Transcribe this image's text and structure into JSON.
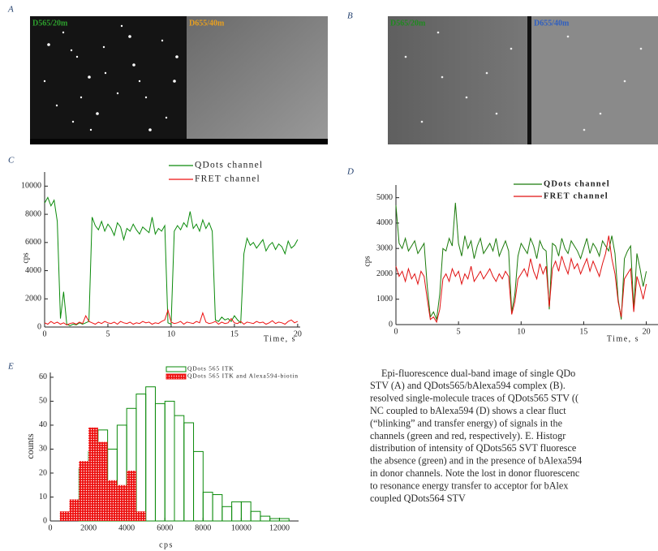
{
  "images": [
    {
      "panel": "A",
      "labels": [
        "D565/20m",
        "D655/40m"
      ]
    },
    {
      "panel": "B",
      "labels": [
        "D565/20m",
        "D655/40m"
      ]
    }
  ],
  "caption": [
    "Epi-fluorescence dual-band  image of single QDo",
    "STV (A) and QDots565/bAlexa594 complex (B).",
    "resolved single-molecule traces of QDots565 STV ((",
    "NC coupled to bAlexa594 (D) shows a clear fluct",
    "(“blinking” and transfer energy) of signals in the",
    "channels (green and red, respectively). E. Histogr",
    "distribution of intensity of QDots565 SVT fluoresce",
    "the absence (green) and in the presence of bAlexa594",
    "in donor channels. Note the lost in donor fluorescenc",
    "to resonance energy transfer to acceptor for bAlex",
    "coupled QDots564 STV"
  ],
  "chart_data": [
    {
      "type": "line",
      "panel": "C",
      "x_label": "Time, s",
      "y_label": "cps",
      "x": [
        0,
        0.25,
        0.5,
        0.75,
        1,
        1.25,
        1.5,
        1.75,
        2,
        2.25,
        2.5,
        2.75,
        3,
        3.25,
        3.5,
        3.75,
        4,
        4.25,
        4.5,
        4.75,
        5,
        5.25,
        5.5,
        5.75,
        6,
        6.25,
        6.5,
        6.75,
        7,
        7.25,
        7.5,
        7.75,
        8,
        8.25,
        8.5,
        8.75,
        9,
        9.25,
        9.5,
        9.75,
        10,
        10.25,
        10.5,
        10.75,
        11,
        11.25,
        11.5,
        11.75,
        12,
        12.25,
        12.5,
        12.75,
        13,
        13.25,
        13.5,
        13.75,
        14,
        14.25,
        14.5,
        14.75,
        15,
        15.25,
        15.5,
        15.75,
        16,
        16.25,
        16.5,
        16.75,
        17,
        17.25,
        17.5,
        17.75,
        18,
        18.25,
        18.5,
        18.75,
        19,
        19.25,
        19.5,
        19.75,
        20
      ],
      "series": [
        {
          "name": "QDots channel",
          "color": "#0a8a0a",
          "values": [
            8800,
            9200,
            8600,
            9000,
            7500,
            600,
            2500,
            200,
            100,
            200,
            150,
            300,
            200,
            300,
            400,
            7800,
            7200,
            6900,
            7500,
            6800,
            7300,
            7000,
            6500,
            7400,
            7100,
            6200,
            7000,
            6800,
            7300,
            6900,
            6600,
            7100,
            6900,
            6700,
            7800,
            6600,
            7000,
            6800,
            7200,
            300,
            200,
            6800,
            7200,
            6900,
            7400,
            7100,
            8200,
            7000,
            7300,
            6800,
            7600,
            7000,
            7400,
            6800,
            500,
            400,
            700,
            500,
            600,
            400,
            800,
            500,
            300,
            5200,
            6300,
            5800,
            6000,
            5600,
            5900,
            6200,
            5400,
            5800,
            6000,
            5500,
            5900,
            5700,
            5200,
            6100,
            5600,
            5800,
            6200
          ]
        },
        {
          "name": "FRET channel",
          "color": "#ee1111",
          "values": [
            300,
            200,
            400,
            250,
            350,
            200,
            300,
            150,
            250,
            300,
            200,
            350,
            250,
            800,
            400,
            300,
            200,
            350,
            250,
            400,
            300,
            250,
            350,
            200,
            400,
            300,
            250,
            350,
            200,
            300,
            250,
            400,
            300,
            350,
            200,
            300,
            250,
            400,
            500,
            1200,
            350,
            250,
            300,
            400,
            200,
            350,
            300,
            250,
            400,
            300,
            1000,
            350,
            250,
            300,
            400,
            200,
            350,
            250,
            300,
            600,
            300,
            250,
            400,
            200,
            350,
            300,
            250,
            400,
            300,
            350,
            200,
            300,
            450,
            250,
            350,
            300,
            200,
            400,
            500,
            300,
            400
          ]
        }
      ],
      "xlim": [
        0,
        20.2
      ],
      "ylim": [
        0,
        11000
      ],
      "xticks": [
        0,
        5,
        10,
        15,
        20
      ],
      "yticks": [
        0,
        2000,
        4000,
        6000,
        8000,
        10000
      ]
    },
    {
      "type": "line",
      "panel": "D",
      "x_label": "Time, s",
      "y_label": "cps",
      "x": [
        0,
        0.25,
        0.5,
        0.75,
        1,
        1.25,
        1.5,
        1.75,
        2,
        2.25,
        2.5,
        2.75,
        3,
        3.25,
        3.5,
        3.75,
        4,
        4.25,
        4.5,
        4.75,
        5,
        5.25,
        5.5,
        5.75,
        6,
        6.25,
        6.5,
        6.75,
        7,
        7.25,
        7.5,
        7.75,
        8,
        8.25,
        8.5,
        8.75,
        9,
        9.25,
        9.5,
        9.75,
        10,
        10.25,
        10.5,
        10.75,
        11,
        11.25,
        11.5,
        11.75,
        12,
        12.25,
        12.5,
        12.75,
        13,
        13.25,
        13.5,
        13.75,
        14,
        14.25,
        14.5,
        14.75,
        15,
        15.25,
        15.5,
        15.75,
        16,
        16.25,
        16.5,
        16.75,
        17,
        17.25,
        17.5,
        17.75,
        18,
        18.25,
        18.5,
        18.75,
        19,
        19.25,
        19.5,
        19.75,
        20
      ],
      "series": [
        {
          "name": "QDots channel",
          "color": "#1a7a0a",
          "values": [
            4700,
            3200,
            3000,
            3400,
            2900,
            3100,
            3300,
            2800,
            3000,
            3200,
            1500,
            300,
            500,
            200,
            1200,
            3000,
            2900,
            3400,
            3100,
            4800,
            3200,
            2700,
            3500,
            3000,
            3300,
            2600,
            3100,
            3400,
            2800,
            3000,
            3200,
            2900,
            3400,
            2700,
            3000,
            3300,
            2900,
            500,
            1200,
            2700,
            3200,
            3000,
            2800,
            3400,
            3100,
            2600,
            3300,
            3000,
            2900,
            600,
            3200,
            3100,
            2700,
            3400,
            3000,
            2800,
            3300,
            3100,
            2900,
            2600,
            3000,
            3400,
            2800,
            3200,
            3000,
            2700,
            3300,
            3100,
            2900,
            3500,
            2800,
            1000,
            200,
            2600,
            2900,
            3100,
            600,
            2800,
            2200,
            1500,
            2100
          ]
        },
        {
          "name": "FRET channel",
          "color": "#e01010",
          "values": [
            2300,
            1900,
            2100,
            1700,
            2200,
            1800,
            2000,
            1600,
            2100,
            1900,
            1000,
            200,
            300,
            100,
            600,
            1800,
            2000,
            1700,
            2200,
            1900,
            2100,
            1600,
            2000,
            1800,
            2300,
            1700,
            1900,
            2100,
            1800,
            2000,
            2200,
            1900,
            1700,
            2000,
            1800,
            2100,
            1900,
            400,
            900,
            1800,
            2000,
            2200,
            1900,
            2600,
            2100,
            1800,
            2400,
            2000,
            2300,
            700,
            2200,
            2500,
            2100,
            2700,
            2300,
            2000,
            2600,
            2200,
            2400,
            2000,
            2300,
            2600,
            2100,
            2500,
            2200,
            1900,
            2400,
            2800,
            3500,
            2600,
            2000,
            900,
            300,
            1800,
            2000,
            2200,
            500,
            1900,
            1500,
            1000,
            1600
          ]
        }
      ],
      "xlim": [
        0,
        21
      ],
      "ylim": [
        0,
        5500
      ],
      "xticks": [
        0,
        5,
        10,
        15,
        20
      ],
      "yticks": [
        0,
        1000,
        2000,
        3000,
        4000,
        5000
      ]
    },
    {
      "type": "histogram",
      "panel": "E",
      "x_label": "cps",
      "y_label": "counts",
      "series": [
        {
          "name": "QDots 565 ITK",
          "color": "#0a8a0a",
          "bins": [
            1500,
            2000,
            2500,
            3000,
            3500,
            4000,
            4500,
            5000,
            5500,
            6000,
            6500,
            7000,
            7500,
            8000,
            8500,
            9000,
            9500,
            10000,
            10500,
            11000,
            11500,
            12000,
            12500
          ],
          "values": [
            22,
            29,
            38,
            30,
            40,
            47,
            53,
            56,
            49,
            50,
            44,
            41,
            29,
            12,
            11,
            6,
            8,
            8,
            4,
            2,
            1,
            1
          ]
        },
        {
          "name": "QDots 565 ITK and Alexa594-biotin",
          "color": "#ee1111",
          "bins": [
            500,
            1000,
            1500,
            2000,
            2500,
            3000,
            3500,
            4000,
            4500,
            5000
          ],
          "values": [
            4,
            9,
            25,
            39,
            33,
            17,
            15,
            21,
            4
          ]
        }
      ],
      "xlim": [
        0,
        13000
      ],
      "ylim": [
        0,
        62
      ],
      "xticks": [
        0,
        2000,
        4000,
        6000,
        8000,
        10000,
        12000
      ],
      "yticks": [
        0,
        10,
        20,
        30,
        40,
        50,
        60
      ]
    }
  ]
}
